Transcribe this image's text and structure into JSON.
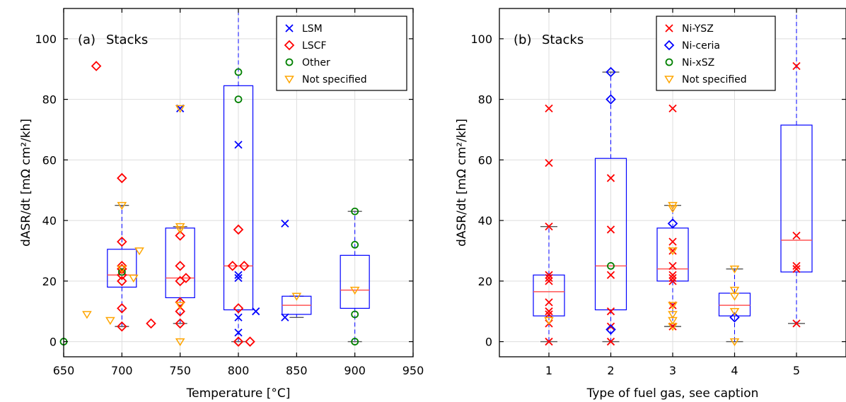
{
  "chart_data": [
    {
      "type": "box",
      "panel_label": "(a)",
      "panel_title": "Stacks",
      "xlabel": "Temperature [°C]",
      "ylabel": "dASR/dt [mΩ cm²/kh]",
      "xlim": [
        650,
        950
      ],
      "ylim": [
        -5,
        110
      ],
      "xticks": [
        650,
        700,
        750,
        800,
        850,
        900,
        950
      ],
      "yticks": [
        0,
        20,
        40,
        60,
        80,
        100
      ],
      "grid": true,
      "legend_position": "top-right",
      "legend": [
        {
          "label": "LSM",
          "marker": "x",
          "color": "#0000ff"
        },
        {
          "label": "LSCF",
          "marker": "diamond",
          "color": "#ff0000"
        },
        {
          "label": "Other",
          "marker": "circle",
          "color": "#008000"
        },
        {
          "label": "Not specified",
          "marker": "triangle-down",
          "color": "#ffa500"
        }
      ],
      "boxes": [
        {
          "x": 700,
          "q1": 18,
          "median": 22,
          "q3": 30.5,
          "whisker_low": 5,
          "whisker_high": 45
        },
        {
          "x": 750,
          "q1": 14.5,
          "median": 21,
          "q3": 37.5,
          "whisker_low": 6,
          "whisker_high": 38
        },
        {
          "x": 800,
          "q1": 10.5,
          "median": 25,
          "q3": 84.5,
          "whisker_low": 0,
          "whisker_high": 110
        },
        {
          "x": 850,
          "q1": 9,
          "median": 12,
          "q3": 15,
          "whisker_low": 8,
          "whisker_high": 15
        },
        {
          "x": 900,
          "q1": 11,
          "median": 17,
          "q3": 28.5,
          "whisker_low": 0,
          "whisker_high": 43
        }
      ],
      "points": [
        {
          "series": "LSM",
          "x": 750,
          "y": 77
        },
        {
          "series": "LSM",
          "x": 800,
          "y": 65
        },
        {
          "series": "LSM",
          "x": 800,
          "y": 22
        },
        {
          "series": "LSM",
          "x": 800,
          "y": 21
        },
        {
          "series": "LSM",
          "x": 800,
          "y": 8
        },
        {
          "series": "LSM",
          "x": 800,
          "y": 3
        },
        {
          "series": "LSM",
          "x": 815,
          "y": 10
        },
        {
          "series": "LSM",
          "x": 840,
          "y": 39
        },
        {
          "series": "LSM",
          "x": 840,
          "y": 8
        },
        {
          "series": "LSCF",
          "x": 678,
          "y": 91
        },
        {
          "series": "LSCF",
          "x": 700,
          "y": 54
        },
        {
          "series": "LSCF",
          "x": 700,
          "y": 33
        },
        {
          "series": "LSCF",
          "x": 700,
          "y": 25
        },
        {
          "series": "LSCF",
          "x": 700,
          "y": 24
        },
        {
          "series": "LSCF",
          "x": 700,
          "y": 22
        },
        {
          "series": "LSCF",
          "x": 700,
          "y": 20
        },
        {
          "series": "LSCF",
          "x": 700,
          "y": 11
        },
        {
          "series": "LSCF",
          "x": 700,
          "y": 5
        },
        {
          "series": "LSCF",
          "x": 725,
          "y": 6
        },
        {
          "series": "LSCF",
          "x": 750,
          "y": 35
        },
        {
          "series": "LSCF",
          "x": 750,
          "y": 25
        },
        {
          "series": "LSCF",
          "x": 750,
          "y": 20
        },
        {
          "series": "LSCF",
          "x": 750,
          "y": 13
        },
        {
          "series": "LSCF",
          "x": 750,
          "y": 10
        },
        {
          "series": "LSCF",
          "x": 750,
          "y": 6
        },
        {
          "series": "LSCF",
          "x": 755,
          "y": 21
        },
        {
          "series": "LSCF",
          "x": 795,
          "y": 25
        },
        {
          "series": "LSCF",
          "x": 800,
          "y": 37
        },
        {
          "series": "LSCF",
          "x": 800,
          "y": 11
        },
        {
          "series": "LSCF",
          "x": 800,
          "y": 0
        },
        {
          "series": "LSCF",
          "x": 805,
          "y": 25
        },
        {
          "series": "LSCF",
          "x": 810,
          "y": 0
        },
        {
          "series": "Other",
          "x": 650,
          "y": 0
        },
        {
          "series": "Other",
          "x": 700,
          "y": 23
        },
        {
          "series": "Other",
          "x": 800,
          "y": 89
        },
        {
          "series": "Other",
          "x": 800,
          "y": 80
        },
        {
          "series": "Other",
          "x": 900,
          "y": 43
        },
        {
          "series": "Other",
          "x": 900,
          "y": 32
        },
        {
          "series": "Other",
          "x": 900,
          "y": 9
        },
        {
          "series": "Other",
          "x": 900,
          "y": 0
        },
        {
          "series": "Not specified",
          "x": 670,
          "y": 9
        },
        {
          "series": "Not specified",
          "x": 690,
          "y": 7
        },
        {
          "series": "Not specified",
          "x": 700,
          "y": 45
        },
        {
          "series": "Not specified",
          "x": 700,
          "y": 24
        },
        {
          "series": "Not specified",
          "x": 710,
          "y": 21
        },
        {
          "series": "Not specified",
          "x": 715,
          "y": 30
        },
        {
          "series": "Not specified",
          "x": 750,
          "y": 77
        },
        {
          "series": "Not specified",
          "x": 750,
          "y": 38
        },
        {
          "series": "Not specified",
          "x": 750,
          "y": 37
        },
        {
          "series": "Not specified",
          "x": 750,
          "y": 12
        },
        {
          "series": "Not specified",
          "x": 750,
          "y": 0
        },
        {
          "series": "Not specified",
          "x": 850,
          "y": 15
        },
        {
          "series": "Not specified",
          "x": 900,
          "y": 17
        }
      ]
    },
    {
      "type": "box",
      "panel_label": "(b)",
      "panel_title": "Stacks",
      "xlabel": "Type of fuel gas, see caption",
      "ylabel": "dASR/dt [mΩ cm²/kh]",
      "xlim": [
        0.2,
        5.8
      ],
      "ylim": [
        -5,
        110
      ],
      "xticks": [
        1,
        2,
        3,
        4,
        5
      ],
      "yticks": [
        0,
        20,
        40,
        60,
        80,
        100
      ],
      "grid": true,
      "legend_position": "top-right",
      "legend": [
        {
          "label": "Ni-YSZ",
          "marker": "x",
          "color": "#ff0000"
        },
        {
          "label": "Ni-ceria",
          "marker": "diamond",
          "color": "#0000ff"
        },
        {
          "label": "Ni-xSZ",
          "marker": "circle",
          "color": "#008000"
        },
        {
          "label": "Not specified",
          "marker": "triangle-down",
          "color": "#ffa500"
        }
      ],
      "boxes": [
        {
          "x": 1,
          "q1": 8.5,
          "median": 16.5,
          "q3": 22,
          "whisker_low": 0,
          "whisker_high": 38
        },
        {
          "x": 2,
          "q1": 10.5,
          "median": 25,
          "q3": 60.5,
          "whisker_low": 0,
          "whisker_high": 89
        },
        {
          "x": 3,
          "q1": 20,
          "median": 24,
          "q3": 37.5,
          "whisker_low": 5,
          "whisker_high": 45
        },
        {
          "x": 4,
          "q1": 8.5,
          "median": 12,
          "q3": 16,
          "whisker_low": 0,
          "whisker_high": 24
        },
        {
          "x": 5,
          "q1": 23,
          "median": 33.5,
          "q3": 71.5,
          "whisker_low": 6,
          "whisker_high": 110
        }
      ],
      "points": [
        {
          "series": "Ni-YSZ",
          "x": 1,
          "y": 77
        },
        {
          "series": "Ni-YSZ",
          "x": 1,
          "y": 59
        },
        {
          "series": "Ni-YSZ",
          "x": 1,
          "y": 38
        },
        {
          "series": "Ni-YSZ",
          "x": 1,
          "y": 22
        },
        {
          "series": "Ni-YSZ",
          "x": 1,
          "y": 21
        },
        {
          "series": "Ni-YSZ",
          "x": 1,
          "y": 20
        },
        {
          "series": "Ni-YSZ",
          "x": 1,
          "y": 13
        },
        {
          "series": "Ni-YSZ",
          "x": 1,
          "y": 10
        },
        {
          "series": "Ni-YSZ",
          "x": 1,
          "y": 9
        },
        {
          "series": "Ni-YSZ",
          "x": 1,
          "y": 6
        },
        {
          "series": "Ni-YSZ",
          "x": 1,
          "y": 0
        },
        {
          "series": "Ni-YSZ",
          "x": 2,
          "y": 54
        },
        {
          "series": "Ni-YSZ",
          "x": 2,
          "y": 37
        },
        {
          "series": "Ni-YSZ",
          "x": 2,
          "y": 22
        },
        {
          "series": "Ni-YSZ",
          "x": 2,
          "y": 10
        },
        {
          "series": "Ni-YSZ",
          "x": 2,
          "y": 5
        },
        {
          "series": "Ni-YSZ",
          "x": 2,
          "y": 0
        },
        {
          "series": "Ni-YSZ",
          "x": 3,
          "y": 77
        },
        {
          "series": "Ni-YSZ",
          "x": 3,
          "y": 33
        },
        {
          "series": "Ni-YSZ",
          "x": 3,
          "y": 30
        },
        {
          "series": "Ni-YSZ",
          "x": 3,
          "y": 25
        },
        {
          "series": "Ni-YSZ",
          "x": 3,
          "y": 22
        },
        {
          "series": "Ni-YSZ",
          "x": 3,
          "y": 21
        },
        {
          "series": "Ni-YSZ",
          "x": 3,
          "y": 20
        },
        {
          "series": "Ni-YSZ",
          "x": 3,
          "y": 12
        },
        {
          "series": "Ni-YSZ",
          "x": 3,
          "y": 5
        },
        {
          "series": "Ni-YSZ",
          "x": 5,
          "y": 91
        },
        {
          "series": "Ni-YSZ",
          "x": 5,
          "y": 35
        },
        {
          "series": "Ni-YSZ",
          "x": 5,
          "y": 25
        },
        {
          "series": "Ni-YSZ",
          "x": 5,
          "y": 24
        },
        {
          "series": "Ni-YSZ",
          "x": 5,
          "y": 6
        },
        {
          "series": "Ni-ceria",
          "x": 2,
          "y": 89
        },
        {
          "series": "Ni-ceria",
          "x": 2,
          "y": 80
        },
        {
          "series": "Ni-ceria",
          "x": 2,
          "y": 4
        },
        {
          "series": "Ni-ceria",
          "x": 3,
          "y": 39
        },
        {
          "series": "Ni-ceria",
          "x": 4,
          "y": 8
        },
        {
          "series": "Ni-xSZ",
          "x": 2,
          "y": 25
        },
        {
          "series": "Not specified",
          "x": 1,
          "y": 7
        },
        {
          "series": "Not specified",
          "x": 3,
          "y": 45
        },
        {
          "series": "Not specified",
          "x": 3,
          "y": 44
        },
        {
          "series": "Not specified",
          "x": 3,
          "y": 30
        },
        {
          "series": "Not specified",
          "x": 3,
          "y": 12
        },
        {
          "series": "Not specified",
          "x": 3,
          "y": 9
        },
        {
          "series": "Not specified",
          "x": 3,
          "y": 7
        },
        {
          "series": "Not specified",
          "x": 3,
          "y": 5
        },
        {
          "series": "Not specified",
          "x": 4,
          "y": 24
        },
        {
          "series": "Not specified",
          "x": 4,
          "y": 17
        },
        {
          "series": "Not specified",
          "x": 4,
          "y": 15
        },
        {
          "series": "Not specified",
          "x": 4,
          "y": 10
        },
        {
          "series": "Not specified",
          "x": 4,
          "y": 0
        }
      ]
    }
  ],
  "colors": {
    "box": "#0000ff",
    "median": "#ff5555",
    "whisker_cap": "#555555",
    "grid": "#dddddd",
    "axis": "#000000"
  }
}
